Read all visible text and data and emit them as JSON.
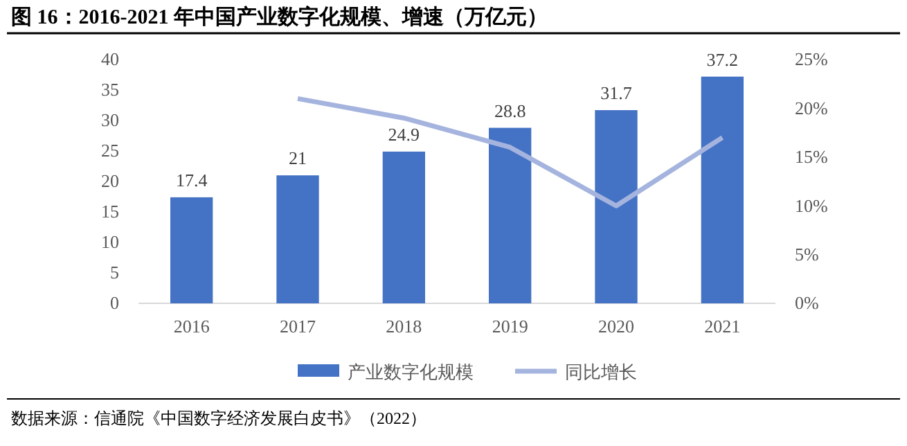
{
  "chart_data": {
    "type": "bar",
    "title": "图 16：2016-2021 年中国产业数字化规模、增速（万亿元）",
    "categories": [
      "2016",
      "2017",
      "2018",
      "2019",
      "2020",
      "2021"
    ],
    "series": [
      {
        "name": "产业数字化规模",
        "color": "#4472c4",
        "values": [
          17.4,
          21,
          24.9,
          28.8,
          31.7,
          37.2
        ],
        "value_labels": [
          "17.4",
          "21",
          "24.9",
          "28.8",
          "31.7",
          "37.2"
        ]
      },
      {
        "name": "同比增长",
        "type": "line",
        "axis": "y2",
        "color": "#a5b4de",
        "values": [
          null,
          21,
          19,
          16,
          10,
          17
        ]
      }
    ],
    "ylim": [
      0,
      40
    ],
    "yticks": [
      0,
      5,
      10,
      15,
      20,
      25,
      30,
      35,
      40
    ],
    "y2lim": [
      0,
      25
    ],
    "y2ticks": [
      {
        "value": 0,
        "label": "0%"
      },
      {
        "value": 5,
        "label": "5%"
      },
      {
        "value": 10,
        "label": "10%"
      },
      {
        "value": 15,
        "label": "15%"
      },
      {
        "value": 20,
        "label": "20%"
      },
      {
        "value": 25,
        "label": "25%"
      }
    ],
    "grid": false,
    "legend": "bottom",
    "marker": "none",
    "line_style": "solid",
    "annotations": [
      "数据来源：信通院《中国数字经济发展白皮书》（2022）"
    ]
  }
}
